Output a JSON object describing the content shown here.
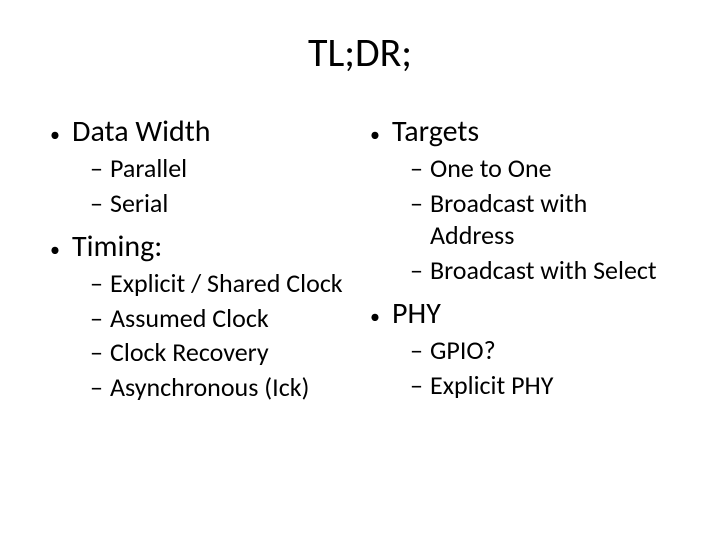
{
  "title": "TL;DR;",
  "left": {
    "section1": {
      "heading": "Data Width",
      "items": [
        "Parallel",
        "Serial"
      ]
    },
    "section2": {
      "heading": "Timing:",
      "items": [
        "Explicit / Shared Clock",
        "Assumed Clock",
        "Clock Recovery",
        "Asynchronous (Ick)"
      ]
    }
  },
  "right": {
    "section1": {
      "heading": "Targets",
      "items": [
        "One to One",
        "Broadcast with Address",
        "Broadcast with Select"
      ]
    },
    "section2": {
      "heading": "PHY",
      "items": [
        "GPIO?",
        "Explicit PHY"
      ]
    }
  },
  "glyphs": {
    "bullet": "•",
    "dash": "–"
  },
  "colors": {
    "background": "#ffffff",
    "text": "#000000"
  },
  "fontsizes": {
    "title": 40,
    "lvl1": 30,
    "lvl2": 26
  }
}
